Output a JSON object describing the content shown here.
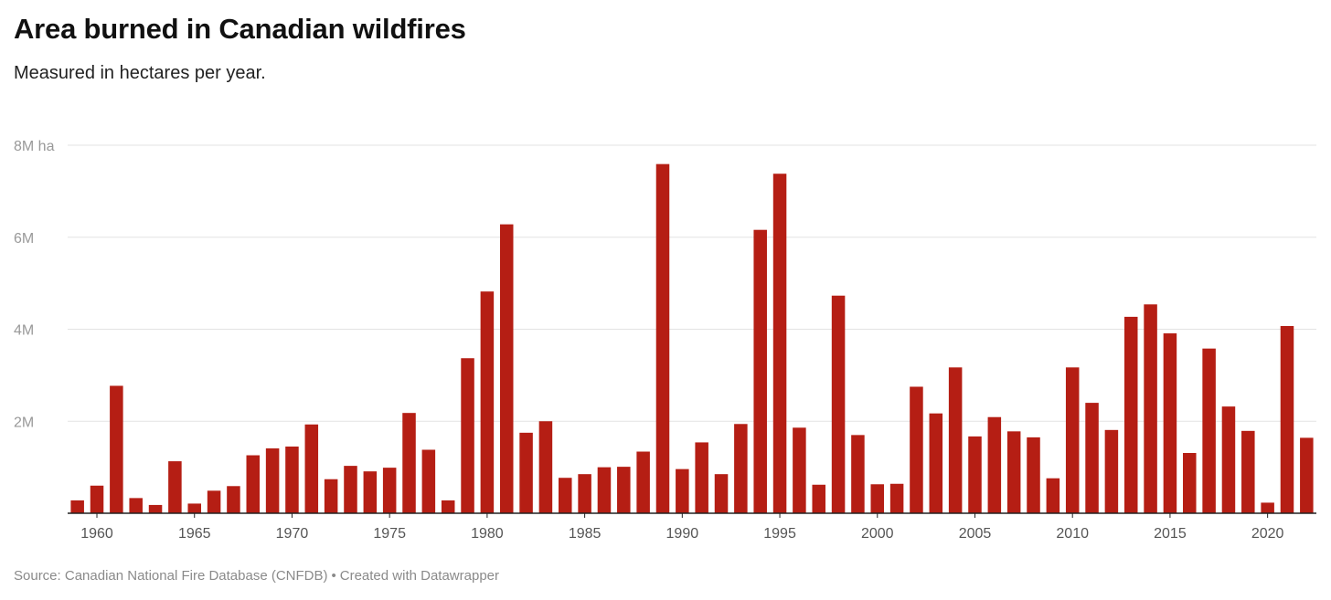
{
  "title": "Area burned in Canadian wildfires",
  "subtitle": "Measured in hectares per year.",
  "footer": {
    "source": "Source: Canadian National Fire Database (CNFDB)",
    "separator": "•",
    "credit": "Created with Datawrapper"
  },
  "colors": {
    "bar": "#b51e14",
    "grid": "#e3e3e3",
    "axis": "#222222",
    "tick_text": "#999999",
    "year_text": "#555555"
  },
  "chart_data": {
    "type": "bar",
    "title": "Area burned in Canadian wildfires",
    "subtitle": "Measured in hectares per year.",
    "unit": "hectares",
    "xlabel": "",
    "ylabel": "",
    "ylim": [
      0,
      8000000
    ],
    "yticks": [
      {
        "value": 2000000,
        "label": "2M"
      },
      {
        "value": 4000000,
        "label": "4M"
      },
      {
        "value": 6000000,
        "label": "6M"
      },
      {
        "value": 8000000,
        "label": "8M ha"
      }
    ],
    "xtick_labels": [
      "1960",
      "1965",
      "1970",
      "1975",
      "1980",
      "1985",
      "1990",
      "1995",
      "2000",
      "2005",
      "2010",
      "2015",
      "2020"
    ],
    "grid": true,
    "legend": "none",
    "categories": [
      1959,
      1960,
      1961,
      1962,
      1963,
      1964,
      1965,
      1966,
      1967,
      1968,
      1969,
      1970,
      1971,
      1972,
      1973,
      1974,
      1975,
      1976,
      1977,
      1978,
      1979,
      1980,
      1981,
      1982,
      1983,
      1984,
      1985,
      1986,
      1987,
      1988,
      1989,
      1990,
      1991,
      1992,
      1993,
      1994,
      1995,
      1996,
      1997,
      1998,
      1999,
      2000,
      2001,
      2002,
      2003,
      2004,
      2005,
      2006,
      2007,
      2008,
      2009,
      2010,
      2011,
      2012,
      2013,
      2014,
      2015,
      2016,
      2017,
      2018,
      2019,
      2020,
      2021,
      2022
    ],
    "values": [
      280000,
      600000,
      2770000,
      330000,
      180000,
      1130000,
      210000,
      490000,
      590000,
      1260000,
      1410000,
      1450000,
      1930000,
      740000,
      1030000,
      910000,
      990000,
      2180000,
      1380000,
      280000,
      3370000,
      4820000,
      6280000,
      1750000,
      2000000,
      770000,
      850000,
      1000000,
      1010000,
      1340000,
      7590000,
      960000,
      1540000,
      850000,
      1940000,
      6160000,
      7380000,
      1860000,
      620000,
      4730000,
      1700000,
      630000,
      640000,
      2750000,
      2170000,
      3170000,
      1670000,
      2090000,
      1780000,
      1650000,
      760000,
      3170000,
      2400000,
      1810000,
      4270000,
      4540000,
      3910000,
      1310000,
      3580000,
      2320000,
      1790000,
      230000,
      4070000,
      1640000
    ]
  }
}
